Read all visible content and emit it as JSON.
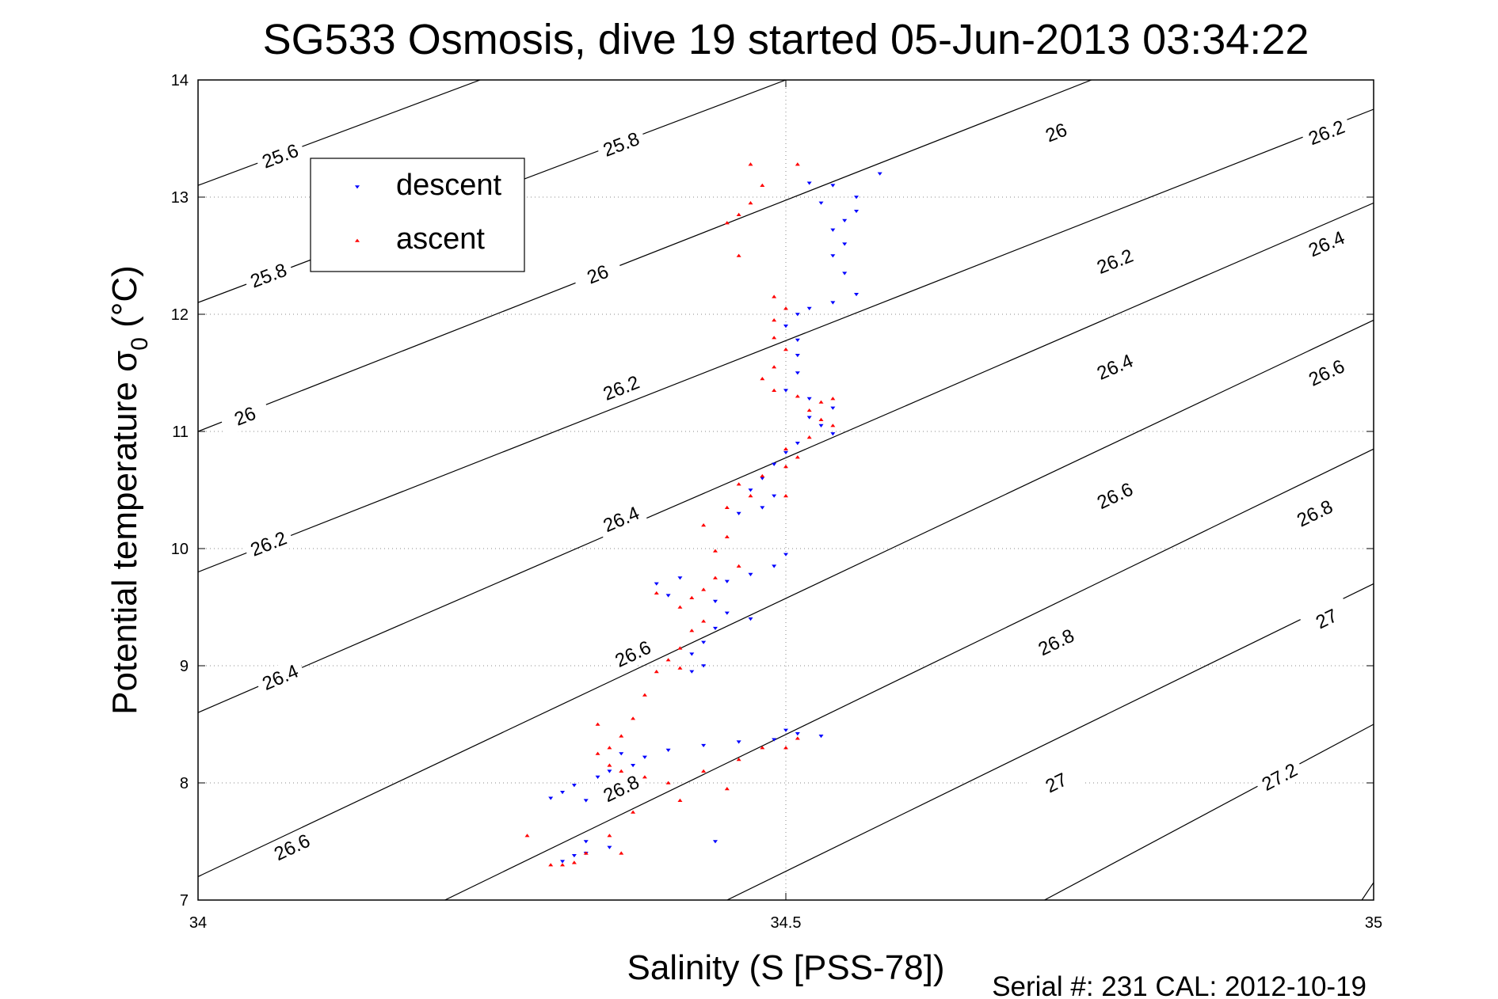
{
  "chart_data": {
    "type": "scatter",
    "title": "SG533 Osmosis, dive 19 started 05-Jun-2013 03:34:22",
    "xlabel": "Salinity (S [PSS-78])",
    "ylabel_main": "Potential temperature σ",
    "ylabel_sub": "0",
    "ylabel_unit": " (°C)",
    "xlim": [
      34,
      35
    ],
    "ylim": [
      7,
      14
    ],
    "xticks": [
      "34",
      "34.5",
      "35"
    ],
    "xtick_values": [
      34,
      34.5,
      35
    ],
    "yticks": [
      "7",
      "8",
      "9",
      "10",
      "11",
      "12",
      "13",
      "14"
    ],
    "ytick_values": [
      7,
      8,
      9,
      10,
      11,
      12,
      13,
      14
    ],
    "grid": true,
    "legend_position": "top-left",
    "footer": "Serial #: 231  CAL: 2012-10-19",
    "contours": [
      {
        "label": "25.6",
        "points": [
          [
            34.0,
            13.1
          ],
          [
            34.24,
            14.0
          ]
        ],
        "labels_at": [
          [
            34.07,
            13.35
          ]
        ]
      },
      {
        "label": "25.8",
        "points": [
          [
            34.0,
            12.1
          ],
          [
            34.5,
            14.0
          ]
        ],
        "labels_at": [
          [
            34.06,
            12.33
          ],
          [
            34.36,
            13.45
          ]
        ]
      },
      {
        "label": "26",
        "points": [
          [
            34.0,
            11.0
          ],
          [
            34.76,
            14.0
          ]
        ],
        "labels_at": [
          [
            34.04,
            11.13
          ],
          [
            34.34,
            12.34
          ],
          [
            34.73,
            13.55
          ]
        ]
      },
      {
        "label": "26.2",
        "points": [
          [
            34.0,
            9.8
          ],
          [
            35.0,
            13.75
          ]
        ],
        "labels_at": [
          [
            34.06,
            10.04
          ],
          [
            34.36,
            11.37
          ],
          [
            34.78,
            12.45
          ],
          [
            34.96,
            13.55
          ]
        ]
      },
      {
        "label": "26.4",
        "points": [
          [
            34.0,
            8.6
          ],
          [
            35.0,
            12.95
          ]
        ],
        "labels_at": [
          [
            34.07,
            8.9
          ],
          [
            34.36,
            10.25
          ],
          [
            34.78,
            11.55
          ],
          [
            34.96,
            12.6
          ]
        ]
      },
      {
        "label": "26.6",
        "points": [
          [
            34.0,
            7.2
          ],
          [
            35.0,
            11.95
          ]
        ],
        "labels_at": [
          [
            34.08,
            7.45
          ],
          [
            34.37,
            9.1
          ],
          [
            34.78,
            10.45
          ],
          [
            34.96,
            11.5
          ]
        ]
      },
      {
        "label": "26.8",
        "points": [
          [
            34.21,
            7.0
          ],
          [
            35.0,
            10.85
          ]
        ],
        "labels_at": [
          [
            34.36,
            7.95
          ],
          [
            34.73,
            9.2
          ],
          [
            34.95,
            10.3
          ]
        ]
      },
      {
        "label": "27",
        "points": [
          [
            34.45,
            7.0
          ],
          [
            35.0,
            9.7
          ]
        ],
        "labels_at": [
          [
            34.73,
            8.0
          ],
          [
            34.96,
            9.4
          ]
        ]
      },
      {
        "label": "27.2",
        "points": [
          [
            34.72,
            7.0
          ],
          [
            35.0,
            8.5
          ]
        ],
        "labels_at": [
          [
            34.92,
            8.05
          ]
        ]
      },
      {
        "label": "",
        "points": [
          [
            34.99,
            7.0
          ],
          [
            35.0,
            7.15
          ]
        ],
        "labels_at": []
      }
    ],
    "series": [
      {
        "name": "descent",
        "color": "#0000ff",
        "marker": "triangle-down",
        "points": [
          [
            34.58,
            13.2
          ],
          [
            34.52,
            13.12
          ],
          [
            34.54,
            13.1
          ],
          [
            34.56,
            13.0
          ],
          [
            34.53,
            12.95
          ],
          [
            34.56,
            12.88
          ],
          [
            34.55,
            12.8
          ],
          [
            34.54,
            12.72
          ],
          [
            34.55,
            12.6
          ],
          [
            34.54,
            12.5
          ],
          [
            34.55,
            12.35
          ],
          [
            34.56,
            12.17
          ],
          [
            34.54,
            12.1
          ],
          [
            34.52,
            12.05
          ],
          [
            34.51,
            12.0
          ],
          [
            34.5,
            11.9
          ],
          [
            34.51,
            11.78
          ],
          [
            34.51,
            11.65
          ],
          [
            34.51,
            11.5
          ],
          [
            34.5,
            11.35
          ],
          [
            34.52,
            11.28
          ],
          [
            34.54,
            11.2
          ],
          [
            34.52,
            11.12
          ],
          [
            34.53,
            11.05
          ],
          [
            34.54,
            10.98
          ],
          [
            34.51,
            10.9
          ],
          [
            34.5,
            10.82
          ],
          [
            34.49,
            10.72
          ],
          [
            34.48,
            10.6
          ],
          [
            34.47,
            10.5
          ],
          [
            34.49,
            10.45
          ],
          [
            34.48,
            10.35
          ],
          [
            34.46,
            10.3
          ],
          [
            34.5,
            9.95
          ],
          [
            34.49,
            9.85
          ],
          [
            34.47,
            9.78
          ],
          [
            34.45,
            9.72
          ],
          [
            34.41,
            9.75
          ],
          [
            34.39,
            9.7
          ],
          [
            34.4,
            9.6
          ],
          [
            34.44,
            9.55
          ],
          [
            34.45,
            9.45
          ],
          [
            34.47,
            9.4
          ],
          [
            34.44,
            9.32
          ],
          [
            34.43,
            9.2
          ],
          [
            34.42,
            9.1
          ],
          [
            34.43,
            9.0
          ],
          [
            34.42,
            8.95
          ],
          [
            34.5,
            8.45
          ],
          [
            34.51,
            8.42
          ],
          [
            34.53,
            8.4
          ],
          [
            34.49,
            8.37
          ],
          [
            34.46,
            8.35
          ],
          [
            34.43,
            8.32
          ],
          [
            34.4,
            8.28
          ],
          [
            34.38,
            8.22
          ],
          [
            34.36,
            8.25
          ],
          [
            34.37,
            8.15
          ],
          [
            34.35,
            8.1
          ],
          [
            34.34,
            8.05
          ],
          [
            34.32,
            7.98
          ],
          [
            34.31,
            7.92
          ],
          [
            34.3,
            7.87
          ],
          [
            34.33,
            7.5
          ],
          [
            34.35,
            7.45
          ],
          [
            34.33,
            7.4
          ],
          [
            34.32,
            7.38
          ],
          [
            34.31,
            7.33
          ],
          [
            34.44,
            7.5
          ],
          [
            34.33,
            7.85
          ]
        ]
      },
      {
        "name": "ascent",
        "color": "#ff0000",
        "marker": "triangle-up",
        "points": [
          [
            34.47,
            13.28
          ],
          [
            34.51,
            13.28
          ],
          [
            34.48,
            13.1
          ],
          [
            34.47,
            12.95
          ],
          [
            34.46,
            12.85
          ],
          [
            34.45,
            12.78
          ],
          [
            34.46,
            12.5
          ],
          [
            34.49,
            12.15
          ],
          [
            34.5,
            12.05
          ],
          [
            34.49,
            11.95
          ],
          [
            34.49,
            11.8
          ],
          [
            34.5,
            11.7
          ],
          [
            34.49,
            11.55
          ],
          [
            34.48,
            11.45
          ],
          [
            34.49,
            11.35
          ],
          [
            34.51,
            11.3
          ],
          [
            34.53,
            11.25
          ],
          [
            34.54,
            11.28
          ],
          [
            34.52,
            11.18
          ],
          [
            34.53,
            11.1
          ],
          [
            34.54,
            11.05
          ],
          [
            34.52,
            10.95
          ],
          [
            34.5,
            10.85
          ],
          [
            34.51,
            10.78
          ],
          [
            34.5,
            10.7
          ],
          [
            34.48,
            10.62
          ],
          [
            34.46,
            10.55
          ],
          [
            34.47,
            10.45
          ],
          [
            34.5,
            10.45
          ],
          [
            34.45,
            10.35
          ],
          [
            34.43,
            10.2
          ],
          [
            34.45,
            10.1
          ],
          [
            34.44,
            9.98
          ],
          [
            34.46,
            9.85
          ],
          [
            34.44,
            9.75
          ],
          [
            34.43,
            9.65
          ],
          [
            34.42,
            9.58
          ],
          [
            34.39,
            9.62
          ],
          [
            34.41,
            9.5
          ],
          [
            34.43,
            9.38
          ],
          [
            34.42,
            9.3
          ],
          [
            34.41,
            9.15
          ],
          [
            34.4,
            9.05
          ],
          [
            34.41,
            8.98
          ],
          [
            34.39,
            8.95
          ],
          [
            34.38,
            8.75
          ],
          [
            34.37,
            8.55
          ],
          [
            34.34,
            8.5
          ],
          [
            34.36,
            8.4
          ],
          [
            34.35,
            8.3
          ],
          [
            34.34,
            8.25
          ],
          [
            34.35,
            8.15
          ],
          [
            34.36,
            8.1
          ],
          [
            34.38,
            8.05
          ],
          [
            34.4,
            8.0
          ],
          [
            34.43,
            8.1
          ],
          [
            34.46,
            8.2
          ],
          [
            34.48,
            8.3
          ],
          [
            34.51,
            8.38
          ],
          [
            34.5,
            8.3
          ],
          [
            34.45,
            7.95
          ],
          [
            34.41,
            7.85
          ],
          [
            34.37,
            7.75
          ],
          [
            34.35,
            7.55
          ],
          [
            34.33,
            7.4
          ],
          [
            34.32,
            7.32
          ],
          [
            34.31,
            7.3
          ],
          [
            34.3,
            7.3
          ],
          [
            34.28,
            7.55
          ],
          [
            34.36,
            7.4
          ]
        ]
      }
    ]
  }
}
